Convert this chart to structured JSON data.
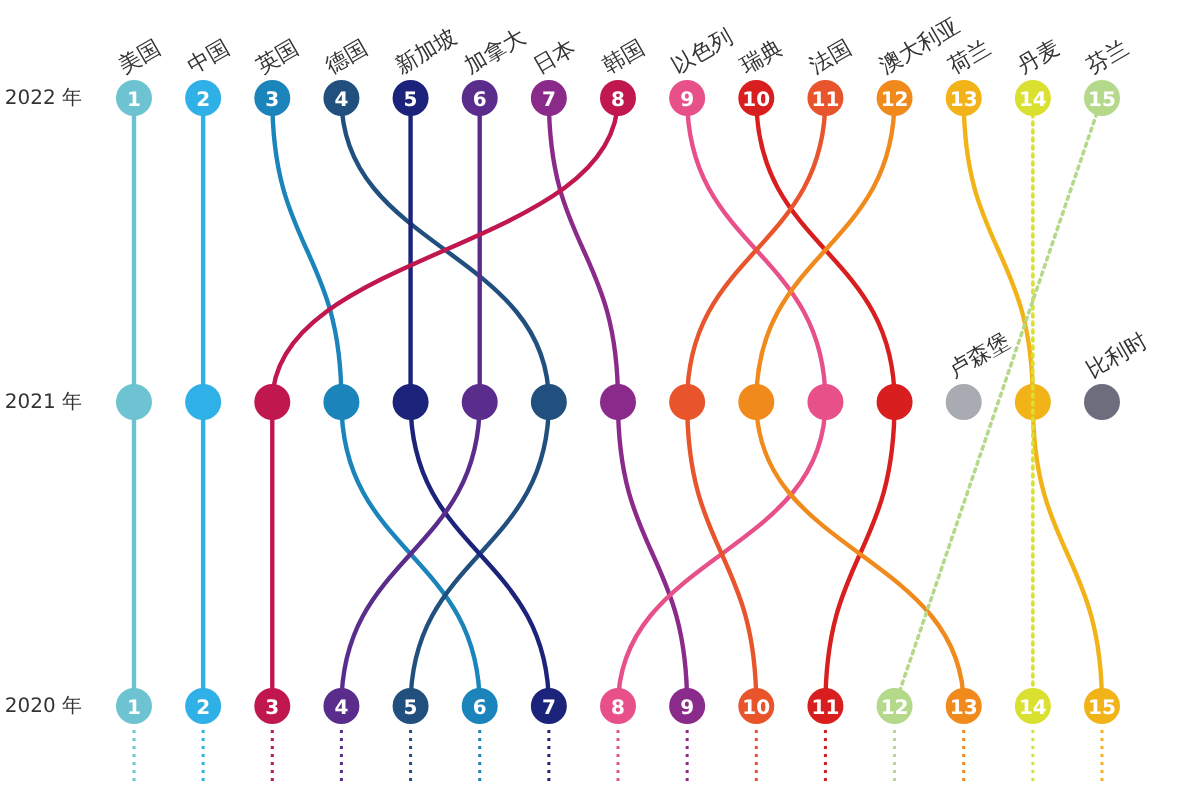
{
  "chart_data": {
    "type": "line",
    "orientation": "horizontal",
    "categories": [
      "2022 年",
      "2021 年",
      "2020 年"
    ],
    "tick_labels": "y",
    "marker": "circle",
    "line_style": "solid",
    "series": [
      {
        "name": "美国",
        "color": "#6ec3d3",
        "values": [
          1,
          1,
          1
        ],
        "value_labels": [
          "1",
          null,
          "1"
        ]
      },
      {
        "name": "中国",
        "color": "#2fb0e6",
        "values": [
          2,
          2,
          2
        ],
        "value_labels": [
          "2",
          null,
          "2"
        ]
      },
      {
        "name": "英国",
        "color": "#1a84bb",
        "values": [
          3,
          4,
          6
        ],
        "value_labels": [
          "3",
          null,
          "6"
        ]
      },
      {
        "name": "德国",
        "color": "#22507e",
        "values": [
          4,
          7,
          5
        ],
        "value_labels": [
          "4",
          null,
          "5"
        ]
      },
      {
        "name": "新加坡",
        "color": "#1c237a",
        "values": [
          5,
          5,
          7
        ],
        "value_labels": [
          "5",
          null,
          "7"
        ]
      },
      {
        "name": "加拿大",
        "color": "#5a2d8c",
        "values": [
          6,
          6,
          4
        ],
        "value_labels": [
          "6",
          null,
          "4"
        ]
      },
      {
        "name": "日本",
        "color": "#8a2a8a",
        "values": [
          7,
          8,
          9
        ],
        "value_labels": [
          "7",
          null,
          "9"
        ]
      },
      {
        "name": "韩国",
        "color": "#c0174f",
        "values": [
          8,
          3,
          3
        ],
        "value_labels": [
          "8",
          null,
          "3"
        ]
      },
      {
        "name": "以色列",
        "color": "#e8508a",
        "values": [
          9,
          11,
          8
        ],
        "value_labels": [
          "9",
          null,
          "8"
        ]
      },
      {
        "name": "瑞典",
        "color": "#d81e1e",
        "values": [
          10,
          12,
          11
        ],
        "value_labels": [
          "10",
          null,
          "11"
        ]
      },
      {
        "name": "法国",
        "color": "#e8542c",
        "values": [
          11,
          9,
          10
        ],
        "value_labels": [
          "11",
          null,
          "10"
        ]
      },
      {
        "name": "澳大利亚",
        "color": "#f08a1c",
        "values": [
          12,
          10,
          13
        ],
        "value_labels": [
          "12",
          null,
          "13"
        ]
      },
      {
        "name": "荷兰",
        "color": "#f2b319",
        "values": [
          13,
          14,
          15
        ],
        "value_labels": [
          "13",
          null,
          "15"
        ]
      },
      {
        "name": "丹麦",
        "color": "#d9e030",
        "line_style": "dotted",
        "values": [
          14,
          null,
          14
        ],
        "value_labels": [
          "14",
          null,
          "14"
        ]
      },
      {
        "name": "芬兰",
        "color": "#b5d98a",
        "line_style": "dotted",
        "values": [
          15,
          null,
          12
        ],
        "value_labels": [
          "15",
          null,
          "12"
        ]
      },
      {
        "name": "卢森堡",
        "color": "#a9abb3",
        "values": [
          null,
          13,
          null
        ],
        "value_labels": [
          null,
          null,
          null
        ]
      },
      {
        "name": "比利时",
        "color": "#6d6e7d",
        "values": [
          null,
          15,
          null
        ],
        "value_labels": [
          null,
          null,
          null
        ]
      }
    ]
  }
}
